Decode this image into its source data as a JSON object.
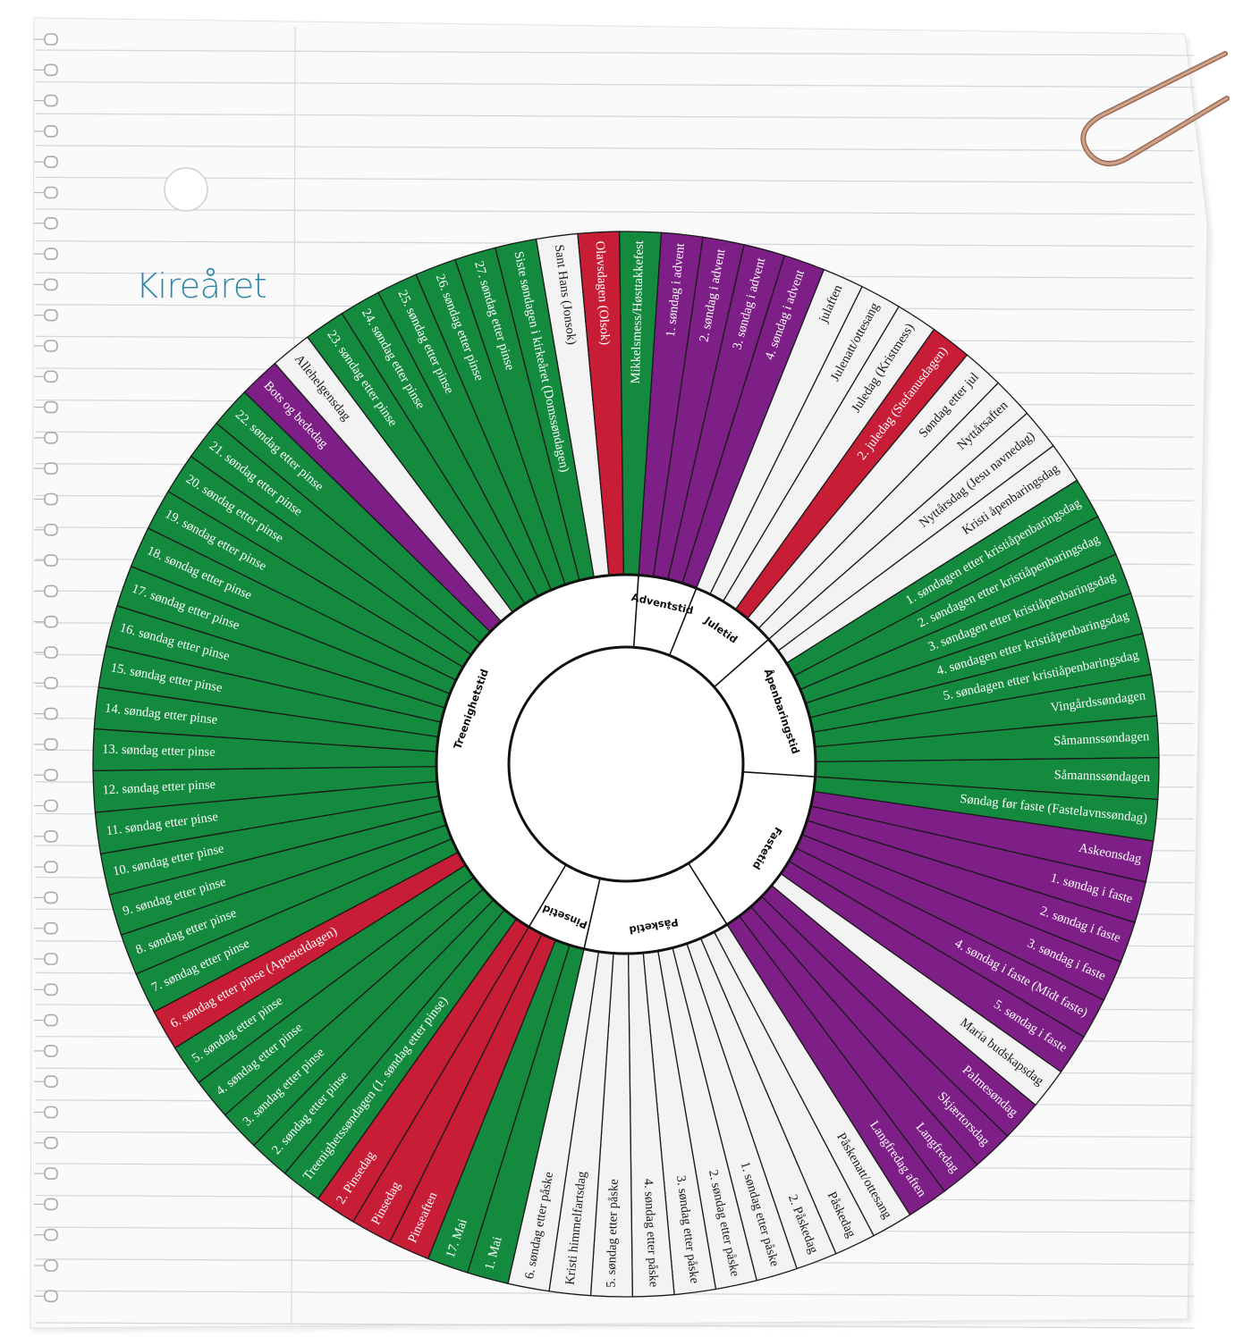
{
  "title": "Kireåret",
  "colors": {
    "green": "#138a3e",
    "purple": "#7d1f86",
    "red": "#c81d36",
    "white": "#f3f3f3",
    "paper": "#fafafa",
    "rule_line": "#d4d7dd",
    "title_color": "#2e86a8",
    "paperclip": "#bf8d74"
  },
  "wheel": {
    "segments": [
      {
        "label": "1. søndag i advent",
        "color": "purple"
      },
      {
        "label": "2. søndag i advent",
        "color": "purple"
      },
      {
        "label": "3. søndag i advent",
        "color": "purple"
      },
      {
        "label": "4. søndag i advent",
        "color": "purple"
      },
      {
        "label": "julaften",
        "color": "white"
      },
      {
        "label": "Julenatt/ottesang",
        "color": "white"
      },
      {
        "label": "Juledag (Kristmess)",
        "color": "white"
      },
      {
        "label": "2. juledag (Stefanusdagen)",
        "color": "red"
      },
      {
        "label": "Søndag etter jul",
        "color": "white"
      },
      {
        "label": "Nyttårsaften",
        "color": "white"
      },
      {
        "label": "Nyttårsdag (Jesu navnedag)",
        "color": "white"
      },
      {
        "label": "Kristi åpenbaringsdag",
        "color": "white"
      },
      {
        "label": "1. søndagen etter kristiåpenbaringsdag",
        "color": "green"
      },
      {
        "label": "2. søndagen etter kristiåpenbaringsdag",
        "color": "green"
      },
      {
        "label": "3. søndagen etter kristiåpenbaringsdag",
        "color": "green"
      },
      {
        "label": "4. søndagen etter kristiåpenbaringsdag",
        "color": "green"
      },
      {
        "label": "5. søndagen etter kristiåpenbaringsdag",
        "color": "green"
      },
      {
        "label": "Vingårdssøndagen",
        "color": "green"
      },
      {
        "label": "Såmannssøndagen",
        "color": "green"
      },
      {
        "label": "Såmannssøndagen",
        "color": "green"
      },
      {
        "label": "Søndag før faste (Fastelavnssøndag)",
        "color": "green"
      },
      {
        "label": "Askeonsdag",
        "color": "purple"
      },
      {
        "label": "1. søndag i faste",
        "color": "purple"
      },
      {
        "label": "2. søndag i faste",
        "color": "purple"
      },
      {
        "label": "3. søndag i faste",
        "color": "purple"
      },
      {
        "label": "4. søndag i faste (Midt faste)",
        "color": "purple"
      },
      {
        "label": "5. søndag i faste",
        "color": "purple"
      },
      {
        "label": "Maria budskapsdag",
        "color": "white"
      },
      {
        "label": "Palmesøndag",
        "color": "purple"
      },
      {
        "label": "Skjærtorsdag",
        "color": "purple"
      },
      {
        "label": "Langfredag",
        "color": "purple"
      },
      {
        "label": "Langfredag aften",
        "color": "purple"
      },
      {
        "label": "Påskenatt/ottesang",
        "color": "white"
      },
      {
        "label": "Påskedag",
        "color": "white"
      },
      {
        "label": "2. Påskedag",
        "color": "white"
      },
      {
        "label": "1. søndag etter påske",
        "color": "white"
      },
      {
        "label": "2. søndag etter påske",
        "color": "white"
      },
      {
        "label": "3. søndag etter påske",
        "color": "white"
      },
      {
        "label": "4. søndag etter påske",
        "color": "white"
      },
      {
        "label": "5. søndag etter påske",
        "color": "white"
      },
      {
        "label": "Kristi himmelfartsdag",
        "color": "white"
      },
      {
        "label": "6. søndag etter påske",
        "color": "white"
      },
      {
        "label": "1. Mai",
        "color": "green"
      },
      {
        "label": "17. Mai",
        "color": "green"
      },
      {
        "label": "Pinseaften",
        "color": "red"
      },
      {
        "label": "Pinsedag",
        "color": "red"
      },
      {
        "label": "2. Pinsedag",
        "color": "red"
      },
      {
        "label": "Treenighetssøndagen (1. søndag etter pinse)",
        "color": "green"
      },
      {
        "label": "2. søndag etter pinse",
        "color": "green"
      },
      {
        "label": "3. søndag etter pinse",
        "color": "green"
      },
      {
        "label": "4. søndag etter pinse",
        "color": "green"
      },
      {
        "label": "5. søndag etter pinse",
        "color": "green"
      },
      {
        "label": "6. søndag etter pinse (Aposteldagen)",
        "color": "red"
      },
      {
        "label": "7. søndag etter pinse",
        "color": "green"
      },
      {
        "label": "8. søndag etter pinse",
        "color": "green"
      },
      {
        "label": "9. søndag etter pinse",
        "color": "green"
      },
      {
        "label": "10. søndag etter pinse",
        "color": "green"
      },
      {
        "label": "11. søndag etter pinse",
        "color": "green"
      },
      {
        "label": "12. søndag etter pinse",
        "color": "green"
      },
      {
        "label": "13. søndag etter pinse",
        "color": "green"
      },
      {
        "label": "14. søndag etter pinse",
        "color": "green"
      },
      {
        "label": "15. søndag etter pinse",
        "color": "green"
      },
      {
        "label": "16. søndag etter pinse",
        "color": "green"
      },
      {
        "label": "17. søndag etter pinse",
        "color": "green"
      },
      {
        "label": "18. søndag etter pinse",
        "color": "green"
      },
      {
        "label": "19. søndag etter pinse",
        "color": "green"
      },
      {
        "label": "20. søndag etter pinse",
        "color": "green"
      },
      {
        "label": "21. søndag etter pinse",
        "color": "green"
      },
      {
        "label": "22. søndag etter pinse",
        "color": "green"
      },
      {
        "label": "Bots og bededag",
        "color": "purple"
      },
      {
        "label": "Allehelgensdag",
        "color": "white"
      },
      {
        "label": "23. søndag etter pinse",
        "color": "green"
      },
      {
        "label": "24. søndag etter pinse",
        "color": "green"
      },
      {
        "label": "25. søndag etter pinse",
        "color": "green"
      },
      {
        "label": "26. søndag etter pinse",
        "color": "green"
      },
      {
        "label": "27. søndag etter pinse",
        "color": "green"
      },
      {
        "label": "Siste søndagen i kirkeåret (Domssøndagen)",
        "color": "green"
      },
      {
        "label": "Sant Hans (Jonsok)",
        "color": "white"
      },
      {
        "label": "Olavsdagen (Olsok)",
        "color": "red"
      },
      {
        "label": "Mikkelsmess/Høsttakkefest",
        "color": "green"
      }
    ],
    "seasons": [
      {
        "label": "Adventstid",
        "start": 0,
        "end": 4
      },
      {
        "label": "Juletid",
        "start": 4,
        "end": 10
      },
      {
        "label": "Åpenbaringstid",
        "start": 10,
        "end": 20
      },
      {
        "label": "Fastetid",
        "start": 20,
        "end": 32
      },
      {
        "label": "Påsketid",
        "start": 32,
        "end": 42
      },
      {
        "label": "Pinsetid",
        "start": 42,
        "end": 46
      },
      {
        "label": "Treenighetstid",
        "start": 46,
        "end": 81
      }
    ]
  }
}
